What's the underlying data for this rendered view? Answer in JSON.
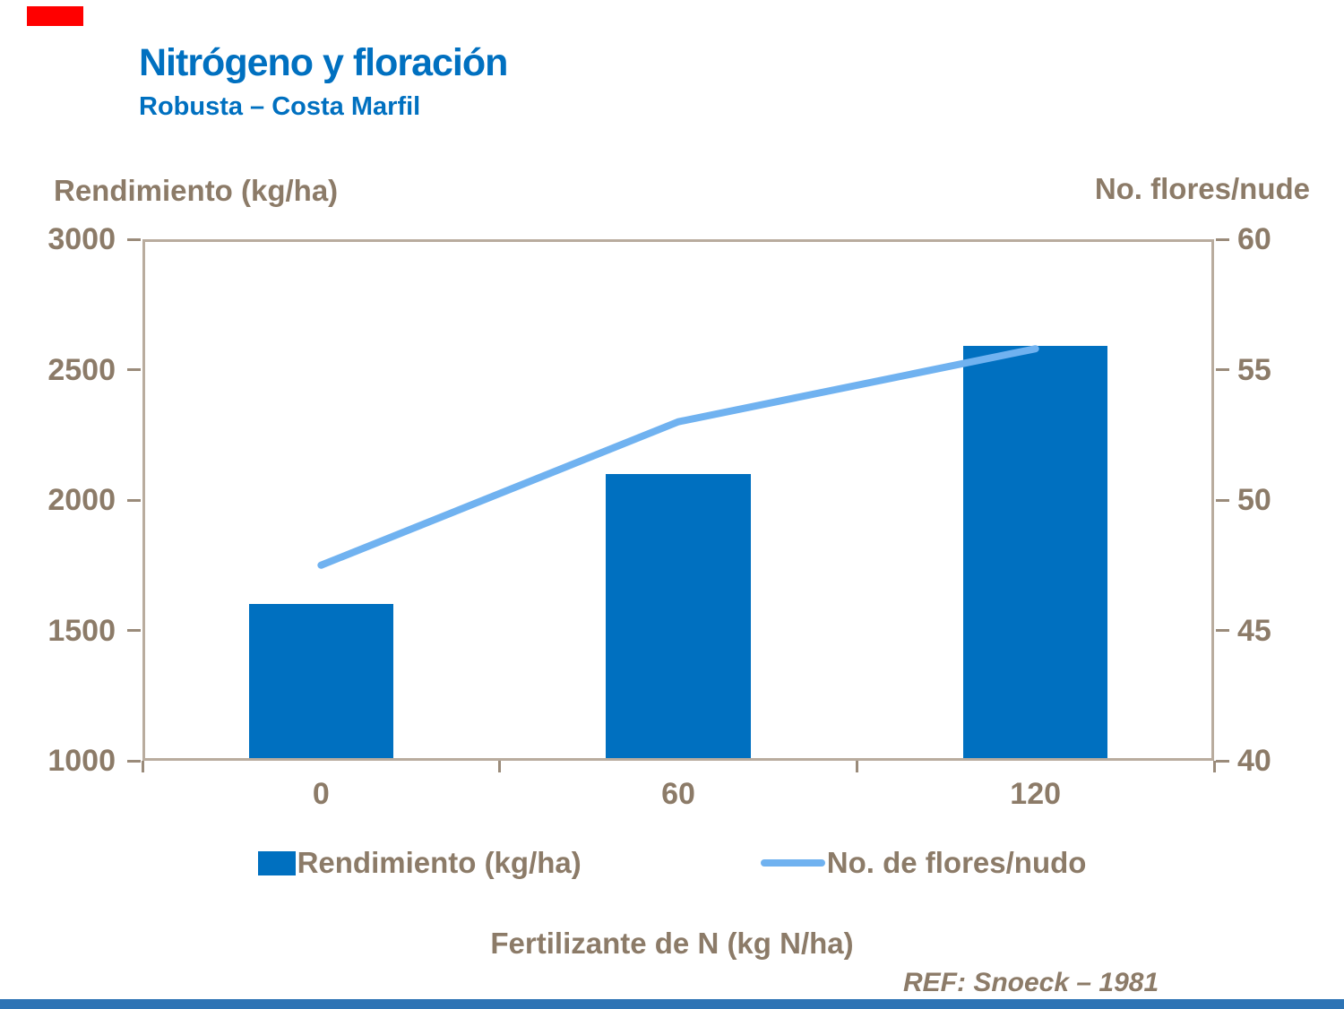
{
  "slide": {
    "title": "Nitrógeno y floración",
    "subtitle": "Robusta – Costa Marfil",
    "ref": "REF: Snoeck – 1981",
    "title_color": "#0070C0",
    "accent_red_color": "#FF0000",
    "bottom_bar_color": "#2E74B5"
  },
  "chart_data": {
    "type": "bar+line",
    "categories": [
      "0",
      "60",
      "120"
    ],
    "series": [
      {
        "name": "Rendimiento (kg/ha)",
        "type": "bar",
        "axis": "left",
        "values": [
          1600,
          2100,
          2590
        ],
        "color": "#0070C0"
      },
      {
        "name": "No. de flores/nudo",
        "type": "line",
        "axis": "right",
        "values": [
          47.5,
          53,
          55.8
        ],
        "color": "#70B2F0"
      }
    ],
    "left_axis": {
      "title": "Rendimiento (kg/ha)",
      "min": 1000,
      "max": 3000,
      "ticks": [
        3000,
        2500,
        2000,
        1500,
        1000
      ]
    },
    "right_axis": {
      "title": "No. flores/nude",
      "min": 40,
      "max": 60,
      "ticks": [
        60,
        55,
        50,
        45,
        40
      ]
    },
    "x_axis": {
      "title": "Fertilizante de N (kg N/ha)",
      "labels": [
        "0",
        "60",
        "120"
      ]
    },
    "grid": false,
    "legend_position": "bottom",
    "text_color": "#8C7B68",
    "border_color": "#B9AC9E"
  }
}
